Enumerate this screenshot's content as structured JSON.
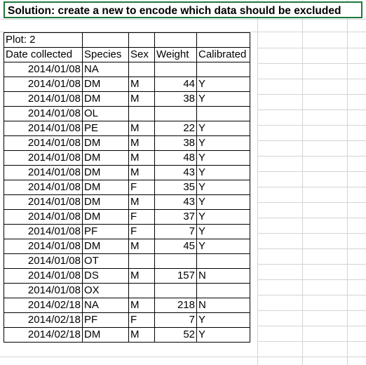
{
  "title": "Solution: create a new to encode which data should be excluded",
  "plot_label": "Plot: 2",
  "headers": [
    "Date collected",
    "Species",
    "Sex",
    "Weight",
    "Calibrated"
  ],
  "rows": [
    [
      "2014/01/08",
      "NA",
      "",
      "",
      ""
    ],
    [
      "2014/01/08",
      "DM",
      "M",
      "44",
      "Y"
    ],
    [
      "2014/01/08",
      "DM",
      "M",
      "38",
      "Y"
    ],
    [
      "2014/01/08",
      "OL",
      "",
      "",
      ""
    ],
    [
      "2014/01/08",
      "PE",
      "M",
      "22",
      "Y"
    ],
    [
      "2014/01/08",
      "DM",
      "M",
      "38",
      "Y"
    ],
    [
      "2014/01/08",
      "DM",
      "M",
      "48",
      "Y"
    ],
    [
      "2014/01/08",
      "DM",
      "M",
      "43",
      "Y"
    ],
    [
      "2014/01/08",
      "DM",
      "F",
      "35",
      "Y"
    ],
    [
      "2014/01/08",
      "DM",
      "M",
      "43",
      "Y"
    ],
    [
      "2014/01/08",
      "DM",
      "F",
      "37",
      "Y"
    ],
    [
      "2014/01/08",
      "PF",
      "F",
      "7",
      "Y"
    ],
    [
      "2014/01/08",
      "DM",
      "M",
      "45",
      "Y"
    ],
    [
      "2014/01/08",
      "OT",
      "",
      "",
      ""
    ],
    [
      "2014/01/08",
      "DS",
      "M",
      "157",
      "N"
    ],
    [
      "2014/01/08",
      "OX",
      "",
      "",
      ""
    ],
    [
      "2014/02/18",
      "NA",
      "M",
      "218",
      "N"
    ],
    [
      "2014/02/18",
      "PF",
      "F",
      "7",
      "Y"
    ],
    [
      "2014/02/18",
      "DM",
      "M",
      "52",
      "Y"
    ]
  ]
}
